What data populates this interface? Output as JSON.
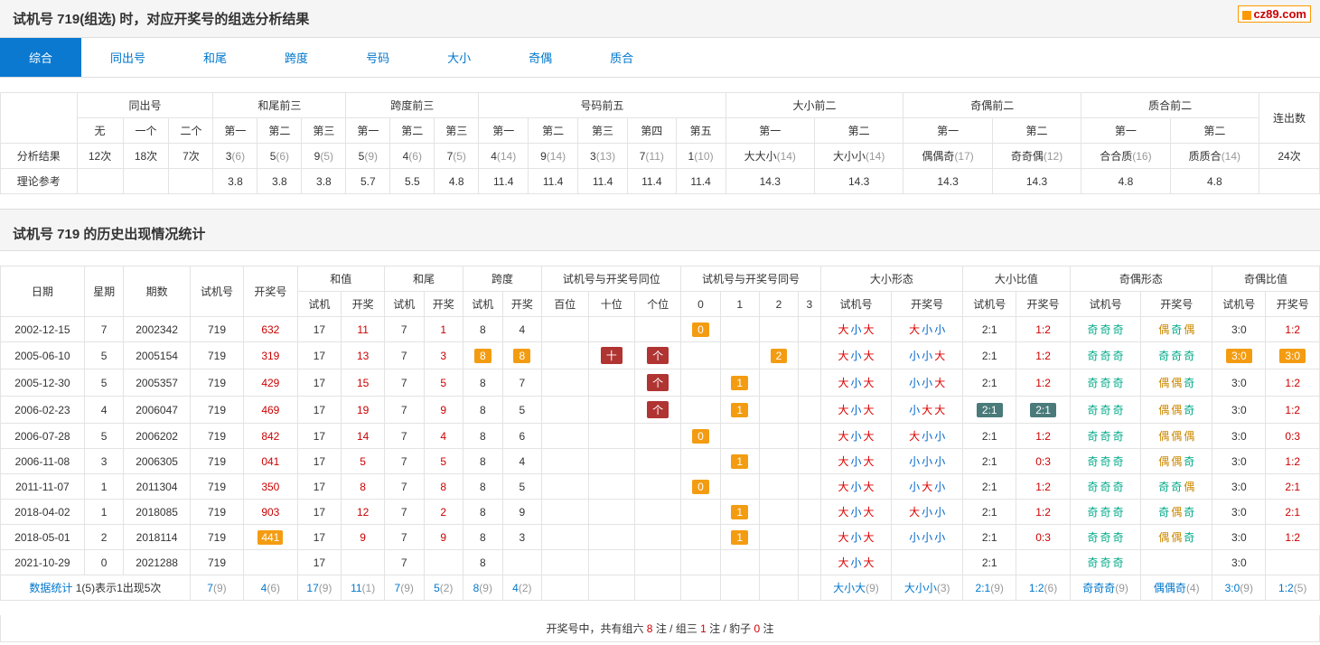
{
  "title": "试机号 719(组选) 时，对应开奖号的组选分析结果",
  "logo": "cz89.com",
  "tabs": [
    "综合",
    "同出号",
    "和尾",
    "跨度",
    "号码",
    "大小",
    "奇偶",
    "质合"
  ],
  "t1": {
    "top": [
      "同出号",
      "和尾前三",
      "跨度前三",
      "号码前五",
      "大小前二",
      "奇偶前二",
      "质合前二",
      "连出数"
    ],
    "sub": [
      "无",
      "一个",
      "二个",
      "第一",
      "第二",
      "第三",
      "第一",
      "第二",
      "第三",
      "第一",
      "第二",
      "第三",
      "第四",
      "第五",
      "第一",
      "第二",
      "第一",
      "第二",
      "第一",
      "第二"
    ],
    "r1lab": "分析结果",
    "r1": [
      {
        "a": "12次"
      },
      {
        "a": "18次"
      },
      {
        "a": "7次"
      },
      {
        "a": "3",
        "b": "(6)"
      },
      {
        "a": "5",
        "b": "(6)"
      },
      {
        "a": "9",
        "b": "(5)"
      },
      {
        "a": "5",
        "b": "(9)"
      },
      {
        "a": "4",
        "b": "(6)"
      },
      {
        "a": "7",
        "b": "(5)"
      },
      {
        "a": "4",
        "b": "(14)"
      },
      {
        "a": "9",
        "b": "(14)"
      },
      {
        "a": "3",
        "b": "(13)"
      },
      {
        "a": "7",
        "b": "(11)"
      },
      {
        "a": "1",
        "b": "(10)"
      },
      {
        "a": "大大小",
        "b": "(14)"
      },
      {
        "a": "大小小",
        "b": "(14)"
      },
      {
        "a": "偶偶奇",
        "b": "(17)"
      },
      {
        "a": "奇奇偶",
        "b": "(12)"
      },
      {
        "a": "合合质",
        "b": "(16)"
      },
      {
        "a": "质质合",
        "b": "(14)"
      },
      {
        "a": "24次"
      }
    ],
    "r2lab": "理论参考",
    "r2": [
      "",
      "",
      "",
      "3.8",
      "3.8",
      "3.8",
      "5.7",
      "5.5",
      "4.8",
      "11.4",
      "11.4",
      "11.4",
      "11.4",
      "11.4",
      "14.3",
      "14.3",
      "14.3",
      "14.3",
      "4.8",
      "4.8",
      ""
    ]
  },
  "sect2": "试机号 719 的历史出现情况统计",
  "t2": {
    "h1": [
      "日期",
      "星期",
      "期数",
      "试机号",
      "开奖号",
      "和值",
      "和尾",
      "跨度",
      "试机号与开奖号同位",
      "试机号与开奖号同号",
      "大小形态",
      "大小比值",
      "奇偶形态",
      "奇偶比值"
    ],
    "h2": [
      "试机",
      "开奖",
      "试机",
      "开奖",
      "试机",
      "开奖",
      "百位",
      "十位",
      "个位",
      "0",
      "1",
      "2",
      "3",
      "试机号",
      "开奖号",
      "试机号",
      "开奖号",
      "试机号",
      "开奖号",
      "试机号",
      "开奖号"
    ],
    "rows": [
      {
        "d": "2002-12-15",
        "w": "7",
        "p": "2002342",
        "s": "719",
        "k": "632",
        "hz": [
          "17",
          "11"
        ],
        "hw": [
          "7",
          "1"
        ],
        "kd": [
          "8",
          "4"
        ],
        "tw": [
          "",
          "",
          ""
        ],
        "th": [
          {
            "t": "0",
            "c": "o"
          },
          null,
          null,
          null
        ],
        "dx1": [
          "大",
          "小",
          "大"
        ],
        "dx2": [
          "大",
          "小",
          "小"
        ],
        "db": [
          "2:1",
          "1:2"
        ],
        "jo1": [
          "奇",
          "奇",
          "奇"
        ],
        "jo2": [
          "偶",
          "奇",
          "偶"
        ],
        "jb": [
          "3:0",
          "1:2"
        ]
      },
      {
        "d": "2005-06-10",
        "w": "5",
        "p": "2005154",
        "s": "719",
        "k": "319",
        "hz": [
          "17",
          "13"
        ],
        "hw": [
          "7",
          "3"
        ],
        "kd": [
          {
            "t": "8",
            "c": "o"
          },
          {
            "t": "8",
            "c": "o"
          }
        ],
        "tw": [
          "",
          {
            "t": "十",
            "c": "r"
          },
          {
            "t": "个",
            "c": "r"
          }
        ],
        "th": [
          null,
          null,
          {
            "t": "2",
            "c": "o"
          },
          null
        ],
        "dx1": [
          "大",
          "小",
          "大"
        ],
        "dx2": [
          "小",
          "小",
          "大"
        ],
        "db": [
          "2:1",
          "1:2"
        ],
        "jo1": [
          "奇",
          "奇",
          "奇"
        ],
        "jo2": [
          "奇",
          "奇",
          "奇"
        ],
        "jb": [
          {
            "t": "3:0",
            "c": "o"
          },
          {
            "t": "3:0",
            "c": "o"
          }
        ]
      },
      {
        "d": "2005-12-30",
        "w": "5",
        "p": "2005357",
        "s": "719",
        "k": "429",
        "hz": [
          "17",
          "15"
        ],
        "hw": [
          "7",
          "5"
        ],
        "kd": [
          "8",
          "7"
        ],
        "tw": [
          "",
          "",
          {
            "t": "个",
            "c": "r"
          }
        ],
        "th": [
          null,
          {
            "t": "1",
            "c": "o"
          },
          null,
          null
        ],
        "dx1": [
          "大",
          "小",
          "大"
        ],
        "dx2": [
          "小",
          "小",
          "大"
        ],
        "db": [
          "2:1",
          "1:2"
        ],
        "jo1": [
          "奇",
          "奇",
          "奇"
        ],
        "jo2": [
          "偶",
          "偶",
          "奇"
        ],
        "jb": [
          "3:0",
          "1:2"
        ]
      },
      {
        "d": "2006-02-23",
        "w": "4",
        "p": "2006047",
        "s": "719",
        "k": "469",
        "hz": [
          "17",
          "19"
        ],
        "hw": [
          "7",
          "9"
        ],
        "kd": [
          "8",
          "5"
        ],
        "tw": [
          "",
          "",
          {
            "t": "个",
            "c": "r"
          }
        ],
        "th": [
          null,
          {
            "t": "1",
            "c": "o"
          },
          null,
          null
        ],
        "dx1": [
          "大",
          "小",
          "大"
        ],
        "dx2": [
          "小",
          "大",
          "大"
        ],
        "db": [
          {
            "t": "2:1",
            "c": "t"
          },
          {
            "t": "2:1",
            "c": "t"
          }
        ],
        "jo1": [
          "奇",
          "奇",
          "奇"
        ],
        "jo2": [
          "偶",
          "偶",
          "奇"
        ],
        "jb": [
          "3:0",
          "1:2"
        ]
      },
      {
        "d": "2006-07-28",
        "w": "5",
        "p": "2006202",
        "s": "719",
        "k": "842",
        "hz": [
          "17",
          "14"
        ],
        "hw": [
          "7",
          "4"
        ],
        "kd": [
          "8",
          "6"
        ],
        "tw": [
          "",
          "",
          ""
        ],
        "th": [
          {
            "t": "0",
            "c": "o"
          },
          null,
          null,
          null
        ],
        "dx1": [
          "大",
          "小",
          "大"
        ],
        "dx2": [
          "大",
          "小",
          "小"
        ],
        "db": [
          "2:1",
          "1:2"
        ],
        "jo1": [
          "奇",
          "奇",
          "奇"
        ],
        "jo2": [
          "偶",
          "偶",
          "偶"
        ],
        "jb": [
          "3:0",
          "0:3"
        ]
      },
      {
        "d": "2006-11-08",
        "w": "3",
        "p": "2006305",
        "s": "719",
        "k": "041",
        "hz": [
          "17",
          "5"
        ],
        "hw": [
          "7",
          "5"
        ],
        "kd": [
          "8",
          "4"
        ],
        "tw": [
          "",
          "",
          ""
        ],
        "th": [
          null,
          {
            "t": "1",
            "c": "o"
          },
          null,
          null
        ],
        "dx1": [
          "大",
          "小",
          "大"
        ],
        "dx2": [
          "小",
          "小",
          "小"
        ],
        "db": [
          "2:1",
          "0:3"
        ],
        "jo1": [
          "奇",
          "奇",
          "奇"
        ],
        "jo2": [
          "偶",
          "偶",
          "奇"
        ],
        "jb": [
          "3:0",
          "1:2"
        ]
      },
      {
        "d": "2011-11-07",
        "w": "1",
        "p": "2011304",
        "s": "719",
        "k": "350",
        "hz": [
          "17",
          "8"
        ],
        "hw": [
          "7",
          "8"
        ],
        "kd": [
          "8",
          "5"
        ],
        "tw": [
          "",
          "",
          ""
        ],
        "th": [
          {
            "t": "0",
            "c": "o"
          },
          null,
          null,
          null
        ],
        "dx1": [
          "大",
          "小",
          "大"
        ],
        "dx2": [
          "小",
          "大",
          "小"
        ],
        "db": [
          "2:1",
          "1:2"
        ],
        "jo1": [
          "奇",
          "奇",
          "奇"
        ],
        "jo2": [
          "奇",
          "奇",
          "偶"
        ],
        "jb": [
          "3:0",
          "2:1"
        ]
      },
      {
        "d": "2018-04-02",
        "w": "1",
        "p": "2018085",
        "s": "719",
        "k": "903",
        "hz": [
          "17",
          "12"
        ],
        "hw": [
          "7",
          "2"
        ],
        "kd": [
          "8",
          "9"
        ],
        "tw": [
          "",
          "",
          ""
        ],
        "th": [
          null,
          {
            "t": "1",
            "c": "o"
          },
          null,
          null
        ],
        "dx1": [
          "大",
          "小",
          "大"
        ],
        "dx2": [
          "大",
          "小",
          "小"
        ],
        "db": [
          "2:1",
          "1:2"
        ],
        "jo1": [
          "奇",
          "奇",
          "奇"
        ],
        "jo2": [
          "奇",
          "偶",
          "奇"
        ],
        "jb": [
          "3:0",
          "2:1"
        ]
      },
      {
        "d": "2018-05-01",
        "w": "2",
        "p": "2018114",
        "s": "719",
        "k": {
          "t": "441",
          "c": "hl"
        },
        "hz": [
          "17",
          "9"
        ],
        "hw": [
          "7",
          "9"
        ],
        "kd": [
          "8",
          "3"
        ],
        "tw": [
          "",
          "",
          ""
        ],
        "th": [
          null,
          {
            "t": "1",
            "c": "o"
          },
          null,
          null
        ],
        "dx1": [
          "大",
          "小",
          "大"
        ],
        "dx2": [
          "小",
          "小",
          "小"
        ],
        "db": [
          "2:1",
          "0:3"
        ],
        "jo1": [
          "奇",
          "奇",
          "奇"
        ],
        "jo2": [
          "偶",
          "偶",
          "奇"
        ],
        "jb": [
          "3:0",
          "1:2"
        ]
      },
      {
        "d": "2021-10-29",
        "w": "0",
        "p": "2021288",
        "s": "719",
        "k": "",
        "hz": [
          "17",
          ""
        ],
        "hw": [
          "7",
          ""
        ],
        "kd": [
          "8",
          ""
        ],
        "tw": [
          "",
          "",
          ""
        ],
        "th": [
          null,
          null,
          null,
          null
        ],
        "dx1": [
          "大",
          "小",
          "大"
        ],
        "dx2": [
          "",
          "",
          ""
        ],
        "db": [
          "2:1",
          ""
        ],
        "jo1": [
          "奇",
          "奇",
          "奇"
        ],
        "jo2": [
          "",
          "",
          ""
        ],
        "jb": [
          "3:0",
          ""
        ]
      }
    ],
    "stat": {
      "lab": "数据统计",
      "lab2": "1(5)表示1出现5次",
      "cells": [
        {
          "a": "7",
          "b": "(9)"
        },
        {
          "a": "4",
          "b": "(6)"
        },
        {
          "a": "17",
          "b": "(9)"
        },
        {
          "a": "11",
          "b": "(1)"
        },
        {
          "a": "7",
          "b": "(9)"
        },
        {
          "a": "5",
          "b": "(2)"
        },
        {
          "a": "8",
          "b": "(9)"
        },
        {
          "a": "4",
          "b": "(2)"
        },
        "",
        "",
        "",
        "",
        "",
        "",
        "",
        {
          "a": "大小大",
          "b": "(9)"
        },
        {
          "a": "大小小",
          "b": "(3)"
        },
        {
          "a": "2:1",
          "b": "(9)"
        },
        {
          "a": "1:2",
          "b": "(6)"
        },
        {
          "a": "奇奇奇",
          "b": "(9)"
        },
        {
          "a": "偶偶奇",
          "b": "(4)"
        },
        {
          "a": "3:0",
          "b": "(9)"
        },
        {
          "a": "1:2",
          "b": "(5)"
        }
      ]
    }
  },
  "footer": {
    "pre": "开奖号中，共有组六 ",
    "a": "8",
    "mid": " 注 / 组三 ",
    "b": "1",
    "mid2": " 注 / 豹子 ",
    "c": "0",
    "post": " 注"
  }
}
